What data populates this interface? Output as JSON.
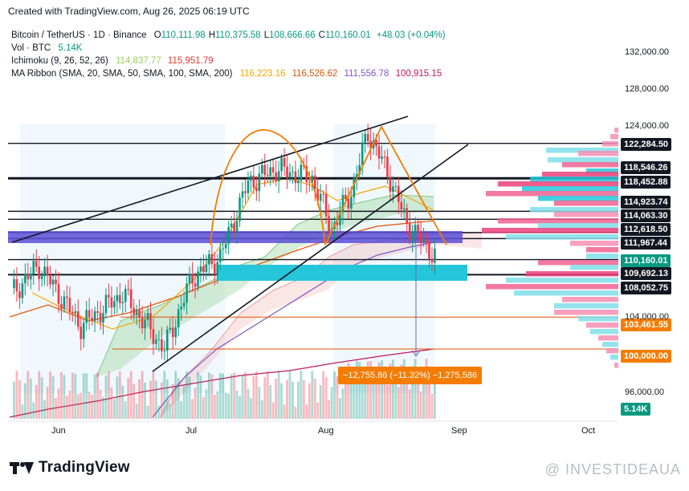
{
  "header": {
    "created": "Created with TradingView.com, Aug 26, 2025 06:19 UTC"
  },
  "legend": {
    "symbol": "Bitcoin / TetherUS · 1D · Binance",
    "ohlc": [
      {
        "k": "O",
        "v": "110,111.98"
      },
      {
        "k": "H",
        "v": "110,375.58"
      },
      {
        "k": "L",
        "v": "108,666.66"
      },
      {
        "k": "C",
        "v": "110,160.01"
      }
    ],
    "change": "+48.03 (+0.04%)",
    "vol_label": "Vol · BTC",
    "vol_value": "5.14K",
    "ichimoku_label": "Ichimoku (9, 26, 52, 26)",
    "ichimoku_values": [
      "114,837.77",
      "115,951.79"
    ],
    "ma_label": "MA Ribbon (SMA, 20, SMA, 50, SMA, 100, SMA, 200)",
    "ma_values": [
      "116,223.16",
      "116,526.62",
      "111,556.78",
      "100,915.15"
    ]
  },
  "colors": {
    "up": "#089981",
    "down": "#f23645",
    "sma20": "#f7a600",
    "sma50": "#e65100",
    "sma100": "#7e57c2",
    "sma200": "#c2185b",
    "span_a": "#a5d6a7",
    "span_b": "#ef9a9a",
    "cyan": "#26c6da",
    "purple": "#5c4dd6",
    "measure": "#f57c00"
  },
  "footer": {
    "brand": "TradingView",
    "watermark": "@ INVESTIDEAUA"
  },
  "chart_data": {
    "type": "candlestick",
    "x_labels": [
      "Jun",
      "Jul",
      "Aug",
      "Sep",
      "Oct"
    ],
    "y_ticks": [
      "132,000.00",
      "128,000.00",
      "124,000.00",
      "104,000.00",
      "96,000.00"
    ],
    "price_tags": [
      {
        "text": "122,284.50",
        "style": "dark"
      },
      {
        "text": "118,546.26",
        "style": "dark"
      },
      {
        "text": "118,452.88",
        "style": "dark"
      },
      {
        "text": "114,923.74",
        "style": "dark"
      },
      {
        "text": "114,063.30",
        "style": "dark"
      },
      {
        "text": "112,618.50",
        "style": "dark"
      },
      {
        "text": "111,967.44",
        "style": "dark"
      },
      {
        "text": "110,160.01",
        "style": "up"
      },
      {
        "text": "109,692.13",
        "style": "dark"
      },
      {
        "text": "108,052.75",
        "style": "dark"
      },
      {
        "text": "103,461.55",
        "style": "orange"
      },
      {
        "text": "100,000.00",
        "style": "orange"
      },
      {
        "text": "5.14K",
        "style": "up"
      }
    ],
    "measure_label": "−12,755.86 (−11.32%) −1,275,586",
    "last_price": 110160.01,
    "levels": [
      122284.5,
      118546.26,
      118452.88,
      114923.74,
      114063.3,
      112618.5,
      111967.44,
      109692.13,
      108052.75,
      103461.55,
      100000.0
    ]
  }
}
